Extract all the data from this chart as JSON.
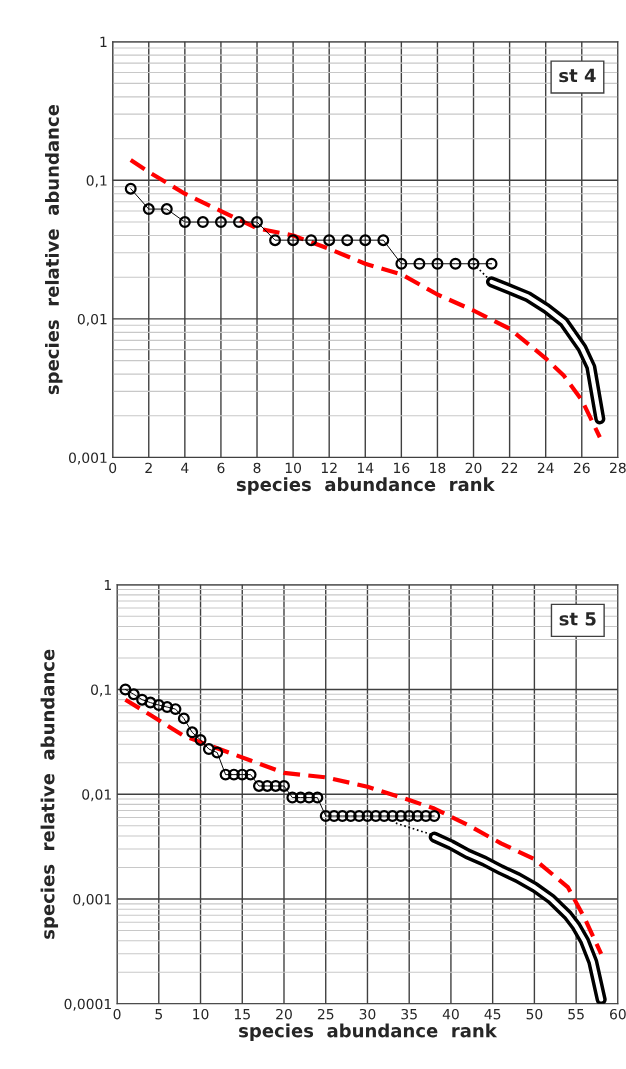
{
  "chart_data": [
    {
      "type": "line",
      "xlabel": "species  abundance  rank",
      "ylabel": "species  relative  abundance",
      "log": "y",
      "grid": true,
      "annotations": [
        "st 4"
      ],
      "xlim": [
        0,
        28
      ],
      "xticks": [
        0,
        2,
        4,
        6,
        8,
        10,
        12,
        14,
        16,
        18,
        20,
        22,
        24,
        26,
        28
      ],
      "ylim": [
        0.001,
        1
      ],
      "yticks": [
        {
          "value": 0.001,
          "label": "0,001"
        },
        {
          "value": 0.01,
          "label": "0,01"
        },
        {
          "value": 0.1,
          "label": "0,1"
        },
        {
          "value": 1,
          "label": "1"
        }
      ],
      "series": [
        {
          "color": "#ff0000",
          "line_style": "dashed",
          "x": [
            1,
            2,
            4,
            6,
            8,
            10,
            12,
            14,
            16,
            18,
            20,
            22,
            24,
            25,
            26,
            27
          ],
          "values": [
            0.14,
            0.115,
            0.08,
            0.06,
            0.045,
            0.04,
            0.032,
            0.025,
            0.021,
            0.015,
            0.0115,
            0.0085,
            0.0052,
            0.0039,
            0.0026,
            0.0014
          ]
        },
        {
          "color": "#000000",
          "marker": "circle",
          "x": [
            1,
            2,
            3,
            4,
            5,
            6,
            7,
            8,
            9,
            10,
            11,
            12,
            13,
            14,
            15,
            16,
            17,
            18,
            19,
            20,
            21
          ],
          "values": [
            0.087,
            0.062,
            0.062,
            0.05,
            0.05,
            0.05,
            0.05,
            0.05,
            0.037,
            0.037,
            0.037,
            0.037,
            0.037,
            0.037,
            0.037,
            0.025,
            0.025,
            0.025,
            0.025,
            0.025,
            0.025
          ]
        },
        {
          "color": "#000000",
          "line_style": "dotted",
          "x": [
            20,
            21
          ],
          "values": [
            0.025,
            0.0185
          ]
        },
        {
          "color": "#000000",
          "line_style": "solid",
          "x": [
            21,
            22,
            23,
            24,
            25,
            26,
            26.5,
            27
          ],
          "values": [
            0.0185,
            0.0164,
            0.0145,
            0.012,
            0.0095,
            0.0062,
            0.0045,
            0.0019
          ]
        }
      ]
    },
    {
      "type": "line",
      "xlabel": "species  abundance  rank",
      "ylabel": "species  relative  abundance",
      "log": "y",
      "grid": true,
      "annotations": [
        "st 5"
      ],
      "xlim": [
        0,
        60
      ],
      "xticks": [
        0,
        5,
        10,
        15,
        20,
        25,
        30,
        35,
        40,
        45,
        50,
        55,
        60
      ],
      "ylim": [
        0.0001,
        1
      ],
      "yticks": [
        {
          "value": 0.0001,
          "label": "0,0001"
        },
        {
          "value": 0.001,
          "label": "0,001"
        },
        {
          "value": 0.01,
          "label": "0,01"
        },
        {
          "value": 0.1,
          "label": "0,1"
        },
        {
          "value": 1,
          "label": "1"
        }
      ],
      "series": [
        {
          "color": "#ff0000",
          "line_style": "dashed",
          "x": [
            1,
            4,
            8,
            12,
            16,
            20,
            25,
            30,
            35,
            38,
            42,
            46,
            50,
            54,
            56,
            58
          ],
          "values": [
            0.08,
            0.057,
            0.036,
            0.0275,
            0.021,
            0.016,
            0.0145,
            0.0118,
            0.0088,
            0.0073,
            0.0051,
            0.0034,
            0.0024,
            0.0013,
            0.00066,
            0.0003
          ]
        },
        {
          "color": "#000000",
          "marker": "circle",
          "x": [
            1,
            2,
            3,
            4,
            5,
            6,
            7,
            8,
            9,
            10,
            11,
            12,
            13,
            14,
            15,
            16,
            17,
            18,
            19,
            20,
            21,
            22,
            23,
            24,
            25,
            26,
            27,
            28,
            29,
            30,
            31,
            32,
            33,
            34,
            35,
            36,
            37,
            38
          ],
          "values": [
            0.1,
            0.09,
            0.08,
            0.075,
            0.071,
            0.068,
            0.065,
            0.053,
            0.039,
            0.033,
            0.027,
            0.025,
            0.0154,
            0.0154,
            0.0154,
            0.0154,
            0.012,
            0.012,
            0.012,
            0.012,
            0.0093,
            0.0093,
            0.0093,
            0.0093,
            0.0062,
            0.0062,
            0.0062,
            0.0062,
            0.0062,
            0.0062,
            0.0062,
            0.0062,
            0.0062,
            0.0062,
            0.0062,
            0.0062,
            0.0062,
            0.0062
          ]
        },
        {
          "color": "#000000",
          "line_style": "dotted",
          "x": [
            33.4,
            37.8
          ],
          "values": [
            0.0053,
            0.0041
          ]
        },
        {
          "color": "#000000",
          "line_style": "solid",
          "x": [
            38,
            40,
            42,
            44,
            46,
            48,
            50,
            52,
            54,
            55,
            56,
            57,
            58
          ],
          "values": [
            0.0039,
            0.0033,
            0.0027,
            0.0023,
            0.0019,
            0.0016,
            0.0013,
            0.001,
            0.0007,
            0.00055,
            0.0004,
            0.00025,
            0.00011
          ]
        }
      ]
    }
  ]
}
